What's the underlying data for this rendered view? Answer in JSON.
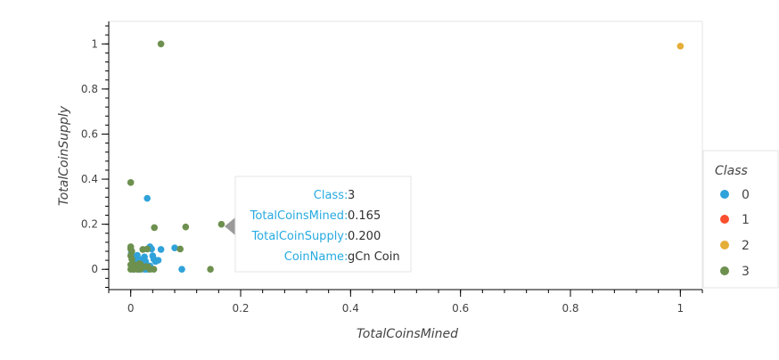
{
  "chart_data": {
    "type": "scatter",
    "xlabel": "TotalCoinsMined",
    "ylabel": "TotalCoinSupply",
    "xlim": [
      -0.04,
      1.04
    ],
    "ylim": [
      -0.09,
      1.1
    ],
    "xticks": [
      0,
      0.2,
      0.4,
      0.6,
      0.8,
      1
    ],
    "yticks": [
      0,
      0.2,
      0.4,
      0.6,
      0.8,
      1
    ],
    "xtick_labels": [
      "0",
      "0.2",
      "0.4",
      "0.6",
      "0.8",
      "1"
    ],
    "ytick_labels": [
      "0",
      "0.2",
      "0.4",
      "0.6",
      "0.8",
      "1"
    ],
    "grid": false,
    "legend": {
      "title": "Class",
      "position": "right"
    },
    "series": [
      {
        "name": "0",
        "color": "#30a2da",
        "points": [
          [
            0.001,
            0.072
          ],
          [
            0.003,
            0.055
          ],
          [
            0.006,
            0.038
          ],
          [
            0.01,
            0.05
          ],
          [
            0.012,
            0.062
          ],
          [
            0.015,
            0.04
          ],
          [
            0.018,
            0.03
          ],
          [
            0.02,
            0.02
          ],
          [
            0.022,
            0.045
          ],
          [
            0.025,
            0.055
          ],
          [
            0.027,
            0.035
          ],
          [
            0.03,
            0.315
          ],
          [
            0.035,
            0.1
          ],
          [
            0.038,
            0.09
          ],
          [
            0.04,
            0.06
          ],
          [
            0.042,
            0.045
          ],
          [
            0.045,
            0.035
          ],
          [
            0.05,
            0.04
          ],
          [
            0.055,
            0.088
          ],
          [
            0.08,
            0.095
          ],
          [
            0.093,
            0.0
          ],
          [
            0.005,
            0.0
          ],
          [
            0.015,
            0.0
          ],
          [
            0.025,
            0.0
          ],
          [
            0.03,
            0.0
          ],
          [
            0.008,
            0.015
          ],
          [
            0.02,
            0.01
          ],
          [
            0.035,
            0.015
          ]
        ]
      },
      {
        "name": "1",
        "color": "#fc4f30",
        "points": []
      },
      {
        "name": "2",
        "color": "#e5ae38",
        "points": [
          [
            1.0,
            0.99
          ]
        ]
      },
      {
        "name": "3",
        "color": "#6d904f",
        "points": [
          [
            0.055,
            1.0
          ],
          [
            0.0,
            0.385
          ],
          [
            0.043,
            0.185
          ],
          [
            0.1,
            0.188
          ],
          [
            0.165,
            0.2
          ],
          [
            0.0,
            0.1
          ],
          [
            0.0,
            0.09
          ],
          [
            0.002,
            0.08
          ],
          [
            0.0,
            0.06
          ],
          [
            0.002,
            0.045
          ],
          [
            0.0,
            0.02
          ],
          [
            0.004,
            0.018
          ],
          [
            0.008,
            0.02
          ],
          [
            0.012,
            0.012
          ],
          [
            0.018,
            0.022
          ],
          [
            0.022,
            0.008
          ],
          [
            0.028,
            0.012
          ],
          [
            0.032,
            0.01
          ],
          [
            0.022,
            0.088
          ],
          [
            0.03,
            0.09
          ],
          [
            0.09,
            0.09
          ],
          [
            0.145,
            0.0
          ],
          [
            0.0,
            0.0
          ],
          [
            0.006,
            0.0
          ],
          [
            0.012,
            0.0
          ],
          [
            0.018,
            0.0
          ],
          [
            0.035,
            0.0
          ],
          [
            0.042,
            0.0
          ],
          [
            0.01,
            0.015
          ],
          [
            0.016,
            0.025
          ]
        ]
      }
    ],
    "tooltip": {
      "rows": [
        {
          "key": "Class",
          "value": "3"
        },
        {
          "key": "TotalCoinsMined",
          "value": "0.165"
        },
        {
          "key": "TotalCoinSupply",
          "value": "0.200"
        },
        {
          "key": "CoinName",
          "value": "gCn Coin"
        }
      ]
    }
  }
}
